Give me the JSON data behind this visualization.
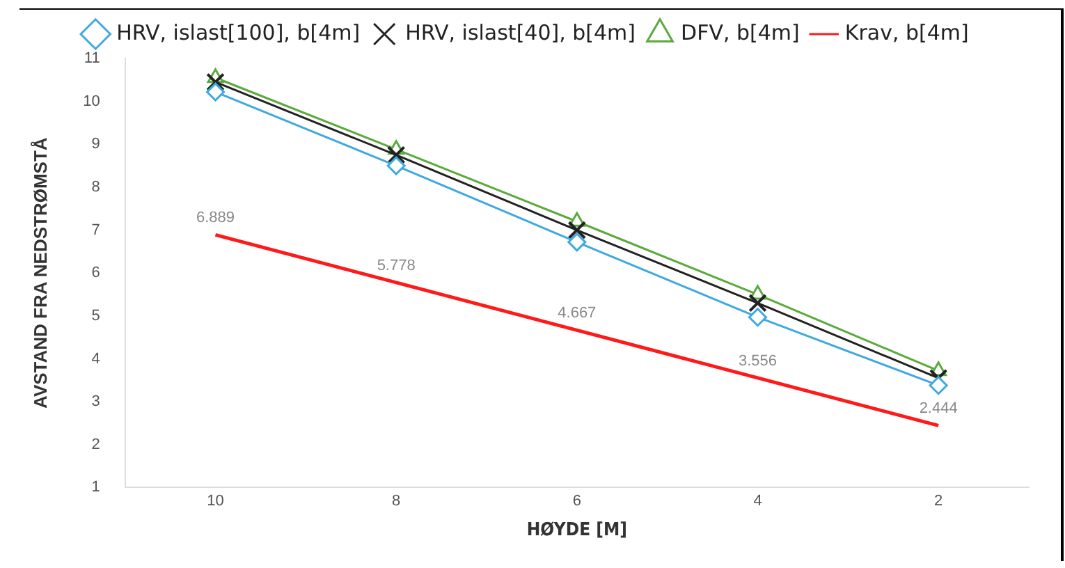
{
  "chart_data": {
    "type": "line",
    "xlabel": "HØYDE [M]",
    "ylabel": "AVSTAND FRA NEDSTRØMSTÅ",
    "categories": [
      "10",
      "8",
      "6",
      "4",
      "2"
    ],
    "series": [
      {
        "name": "HRV, islast[100], b[4m]",
        "color": "#3fa9e0",
        "marker": "diamond",
        "values": [
          10.22,
          8.5,
          6.72,
          4.97,
          3.38
        ]
      },
      {
        "name": "HRV, islast[40], b[4m]",
        "color": "#222222",
        "marker": "cross",
        "values": [
          10.45,
          8.75,
          7.0,
          5.3,
          3.55
        ]
      },
      {
        "name": "DFV, b[4m]",
        "color": "#5aaa3c",
        "marker": "triangle",
        "values": [
          10.55,
          8.88,
          7.2,
          5.5,
          3.72
        ]
      },
      {
        "name": "Krav, b[4m]",
        "color": "#ff1a1a",
        "marker": "none",
        "values": [
          6.889,
          5.778,
          4.667,
          3.556,
          2.444
        ],
        "value_labels": [
          "6.889",
          "5.778",
          "4.667",
          "3.556",
          "2.444"
        ]
      }
    ],
    "ylim": [
      1,
      11
    ],
    "yticks": [
      1,
      2,
      3,
      4,
      5,
      6,
      7,
      8,
      9,
      10,
      11
    ],
    "grid": false,
    "legend": "top"
  }
}
